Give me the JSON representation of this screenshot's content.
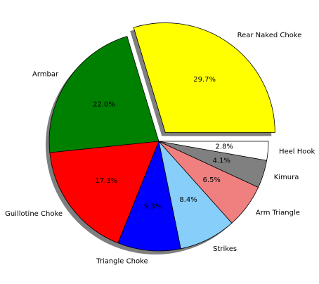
{
  "chart_data": {
    "type": "pie",
    "title": "",
    "labels": [
      "Rear Naked Choke",
      "Armbar",
      "Guillotine Choke",
      "Triangle Choke",
      "Strikes",
      "Arm Triangle",
      "Kimura",
      "Heel Hook"
    ],
    "values": [
      29.7,
      22.0,
      17.3,
      9.3,
      8.4,
      6.5,
      4.1,
      2.8
    ],
    "percent_labels": [
      "29.7%",
      "22.0%",
      "17.3%",
      "9.3%",
      "8.4%",
      "6.5%",
      "4.1%",
      "2.8%"
    ],
    "colors": [
      "#ffff00",
      "#008000",
      "#ff0000",
      "#0000ff",
      "#87cefa",
      "#f08080",
      "#808080",
      "#ffffff"
    ],
    "exploded": [
      "Rear Naked Choke"
    ],
    "shadow": true,
    "start_angle_deg": 0,
    "direction": "counterclockwise",
    "edge_color": "#000000"
  }
}
